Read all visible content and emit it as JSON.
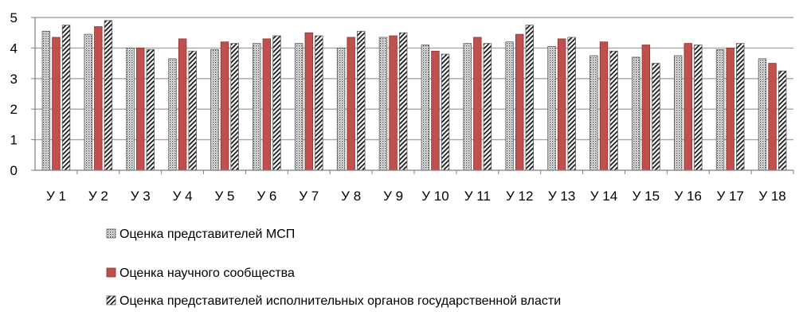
{
  "chart_data": {
    "type": "bar",
    "title": "",
    "xlabel": "",
    "ylabel": "",
    "ylim": [
      0,
      5
    ],
    "yticks": [
      0,
      1,
      2,
      3,
      4,
      5
    ],
    "grid": true,
    "legend_position": "bottom",
    "categories": [
      "У 1",
      "У 2",
      "У 3",
      "У 4",
      "У 5",
      "У 6",
      "У 7",
      "У 8",
      "У 9",
      "У 10",
      "У 11",
      "У 12",
      "У 13",
      "У 14",
      "У 15",
      "У 16",
      "У 17",
      "У 18"
    ],
    "series": [
      {
        "name": "Оценка представителей МСП",
        "pattern": "dots",
        "color": "#9a9a9a",
        "values": [
          4.55,
          4.45,
          4.0,
          3.65,
          3.95,
          4.15,
          4.15,
          4.0,
          4.35,
          4.1,
          4.15,
          4.2,
          4.05,
          3.75,
          3.7,
          3.75,
          3.95,
          3.65
        ]
      },
      {
        "name": "Оценка научного сообщества",
        "pattern": "solid",
        "color": "#c0504d",
        "values": [
          4.35,
          4.7,
          4.0,
          4.3,
          4.2,
          4.3,
          4.5,
          4.35,
          4.4,
          3.9,
          4.35,
          4.45,
          4.3,
          4.2,
          4.1,
          4.15,
          4.0,
          3.5
        ]
      },
      {
        "name": "Оценка представителей исполнительных органов государственной власти",
        "pattern": "diagonal",
        "color": "#1a1a1a",
        "values": [
          4.75,
          4.9,
          3.95,
          3.9,
          4.15,
          4.4,
          4.4,
          4.55,
          4.5,
          3.8,
          4.15,
          4.75,
          4.35,
          3.9,
          3.5,
          4.1,
          4.15,
          3.25
        ]
      }
    ]
  }
}
